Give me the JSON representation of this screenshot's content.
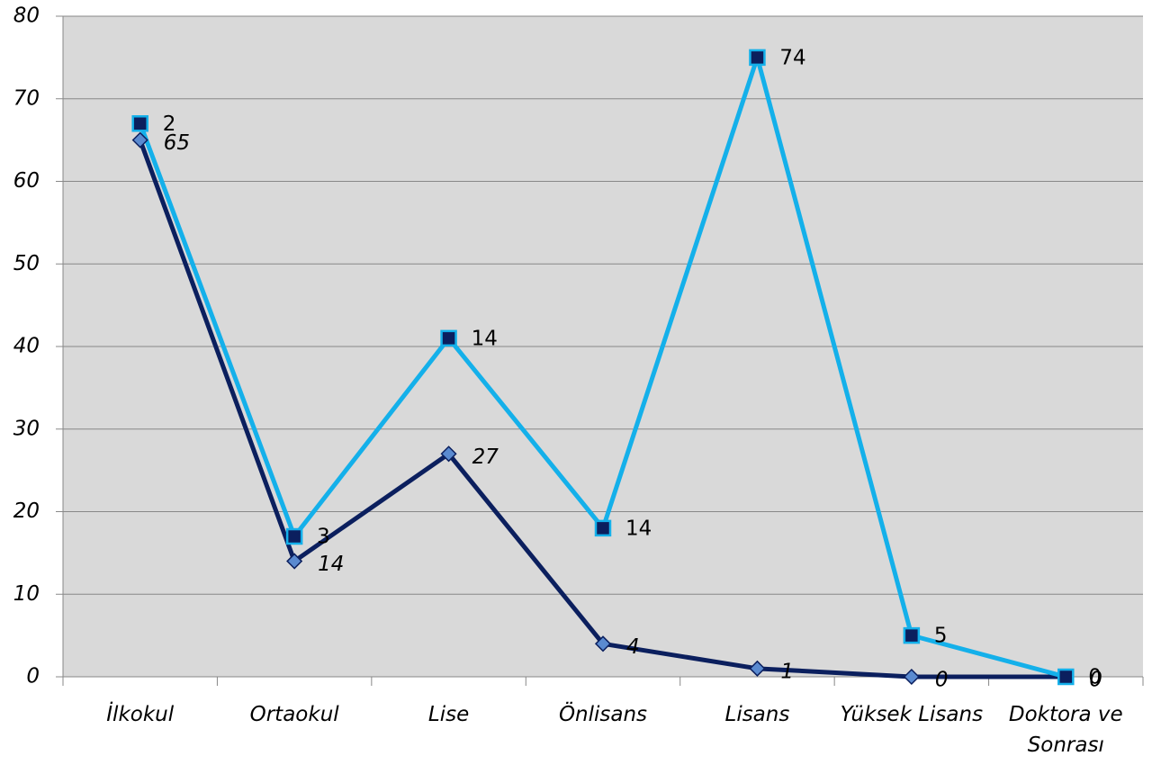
{
  "chart_data": {
    "type": "line",
    "stacked": true,
    "categories": [
      "İlkokul",
      "Ortaokul",
      "Lise",
      "Önlisans",
      "Lisans",
      "Yüksek Lisans",
      "Doktora ve Sonrası"
    ],
    "series": [
      {
        "color": "#0b1f5e",
        "marker": "diamond",
        "values": [
          65,
          14,
          27,
          4,
          1,
          0,
          0
        ]
      },
      {
        "color": "#14b0ea",
        "marker": "square",
        "values": [
          2,
          3,
          14,
          14,
          74,
          5,
          0
        ]
      }
    ],
    "ylim": [
      0,
      80
    ],
    "yticks": [
      0,
      10,
      20,
      30,
      40,
      50,
      60,
      70,
      80
    ],
    "grid": true
  }
}
